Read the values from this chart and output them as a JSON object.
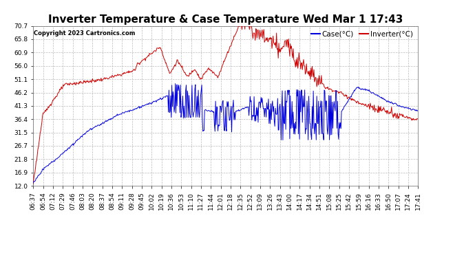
{
  "title": "Inverter Temperature & Case Temperature Wed Mar 1 17:43",
  "copyright": "Copyright 2023 Cartronics.com",
  "legend_case": "Case(°C)",
  "legend_inverter": "Inverter(°C)",
  "yticks": [
    12.0,
    16.9,
    21.8,
    26.7,
    31.5,
    36.4,
    41.3,
    46.2,
    51.1,
    56.0,
    60.9,
    65.8,
    70.7
  ],
  "ylim": [
    12.0,
    70.7
  ],
  "background_color": "#ffffff",
  "plot_bg_color": "#ffffff",
  "grid_color": "#bbbbbb",
  "case_color": "#0000dd",
  "inverter_color": "#cc0000",
  "title_fontsize": 11,
  "tick_fontsize": 6.5,
  "n_points": 670,
  "xtick_labels": [
    "06:37",
    "06:54",
    "07:12",
    "07:29",
    "07:46",
    "08:03",
    "08:20",
    "08:37",
    "08:54",
    "09:11",
    "09:28",
    "09:45",
    "10:02",
    "10:19",
    "10:36",
    "10:53",
    "11:10",
    "11:27",
    "11:44",
    "12:01",
    "12:18",
    "12:35",
    "12:52",
    "13:09",
    "13:26",
    "13:43",
    "14:00",
    "14:17",
    "14:34",
    "14:51",
    "15:08",
    "15:25",
    "15:42",
    "15:59",
    "16:16",
    "16:33",
    "16:50",
    "17:07",
    "17:24",
    "17:41"
  ]
}
